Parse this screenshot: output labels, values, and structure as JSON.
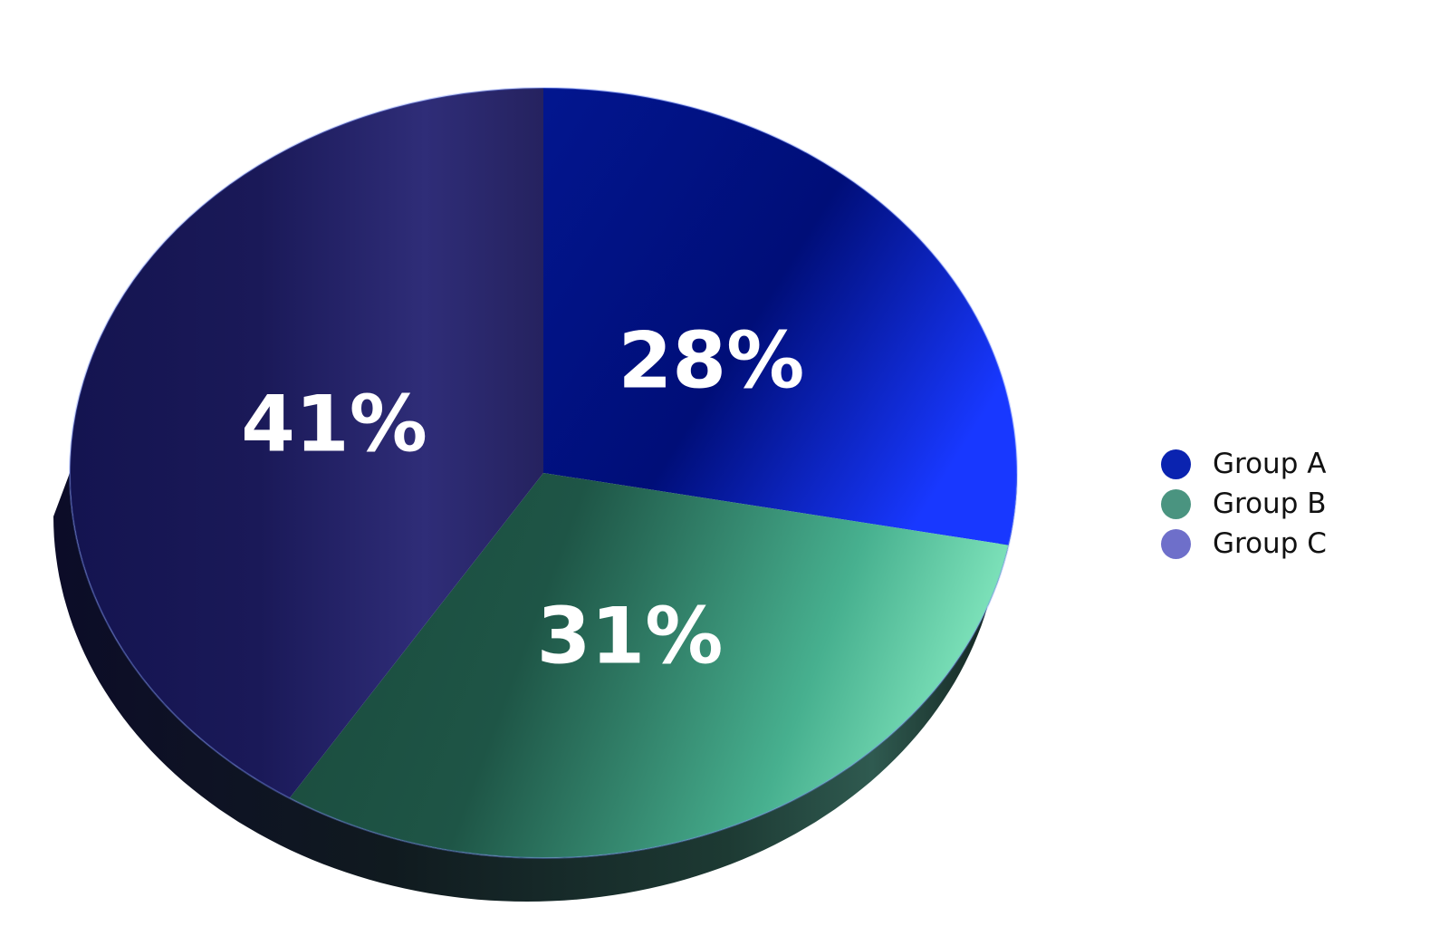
{
  "chart_data": {
    "type": "pie",
    "style": "3d",
    "categories": [
      "Group A",
      "Group B",
      "Group C"
    ],
    "values": [
      28,
      31,
      41
    ],
    "data_labels": [
      "28%",
      "31%",
      "41%"
    ],
    "colors": [
      "#0a23b0",
      "#3c8f78",
      "#5f5dc0"
    ],
    "start": "12 o'clock",
    "direction": "clockwise",
    "legend": {
      "placement": "right",
      "entries": [
        {
          "name": "Group A",
          "color": "#0a23b0"
        },
        {
          "name": "Group B",
          "color": "#4a9480"
        },
        {
          "name": "Group C",
          "color": "#6e6fca"
        }
      ]
    }
  }
}
